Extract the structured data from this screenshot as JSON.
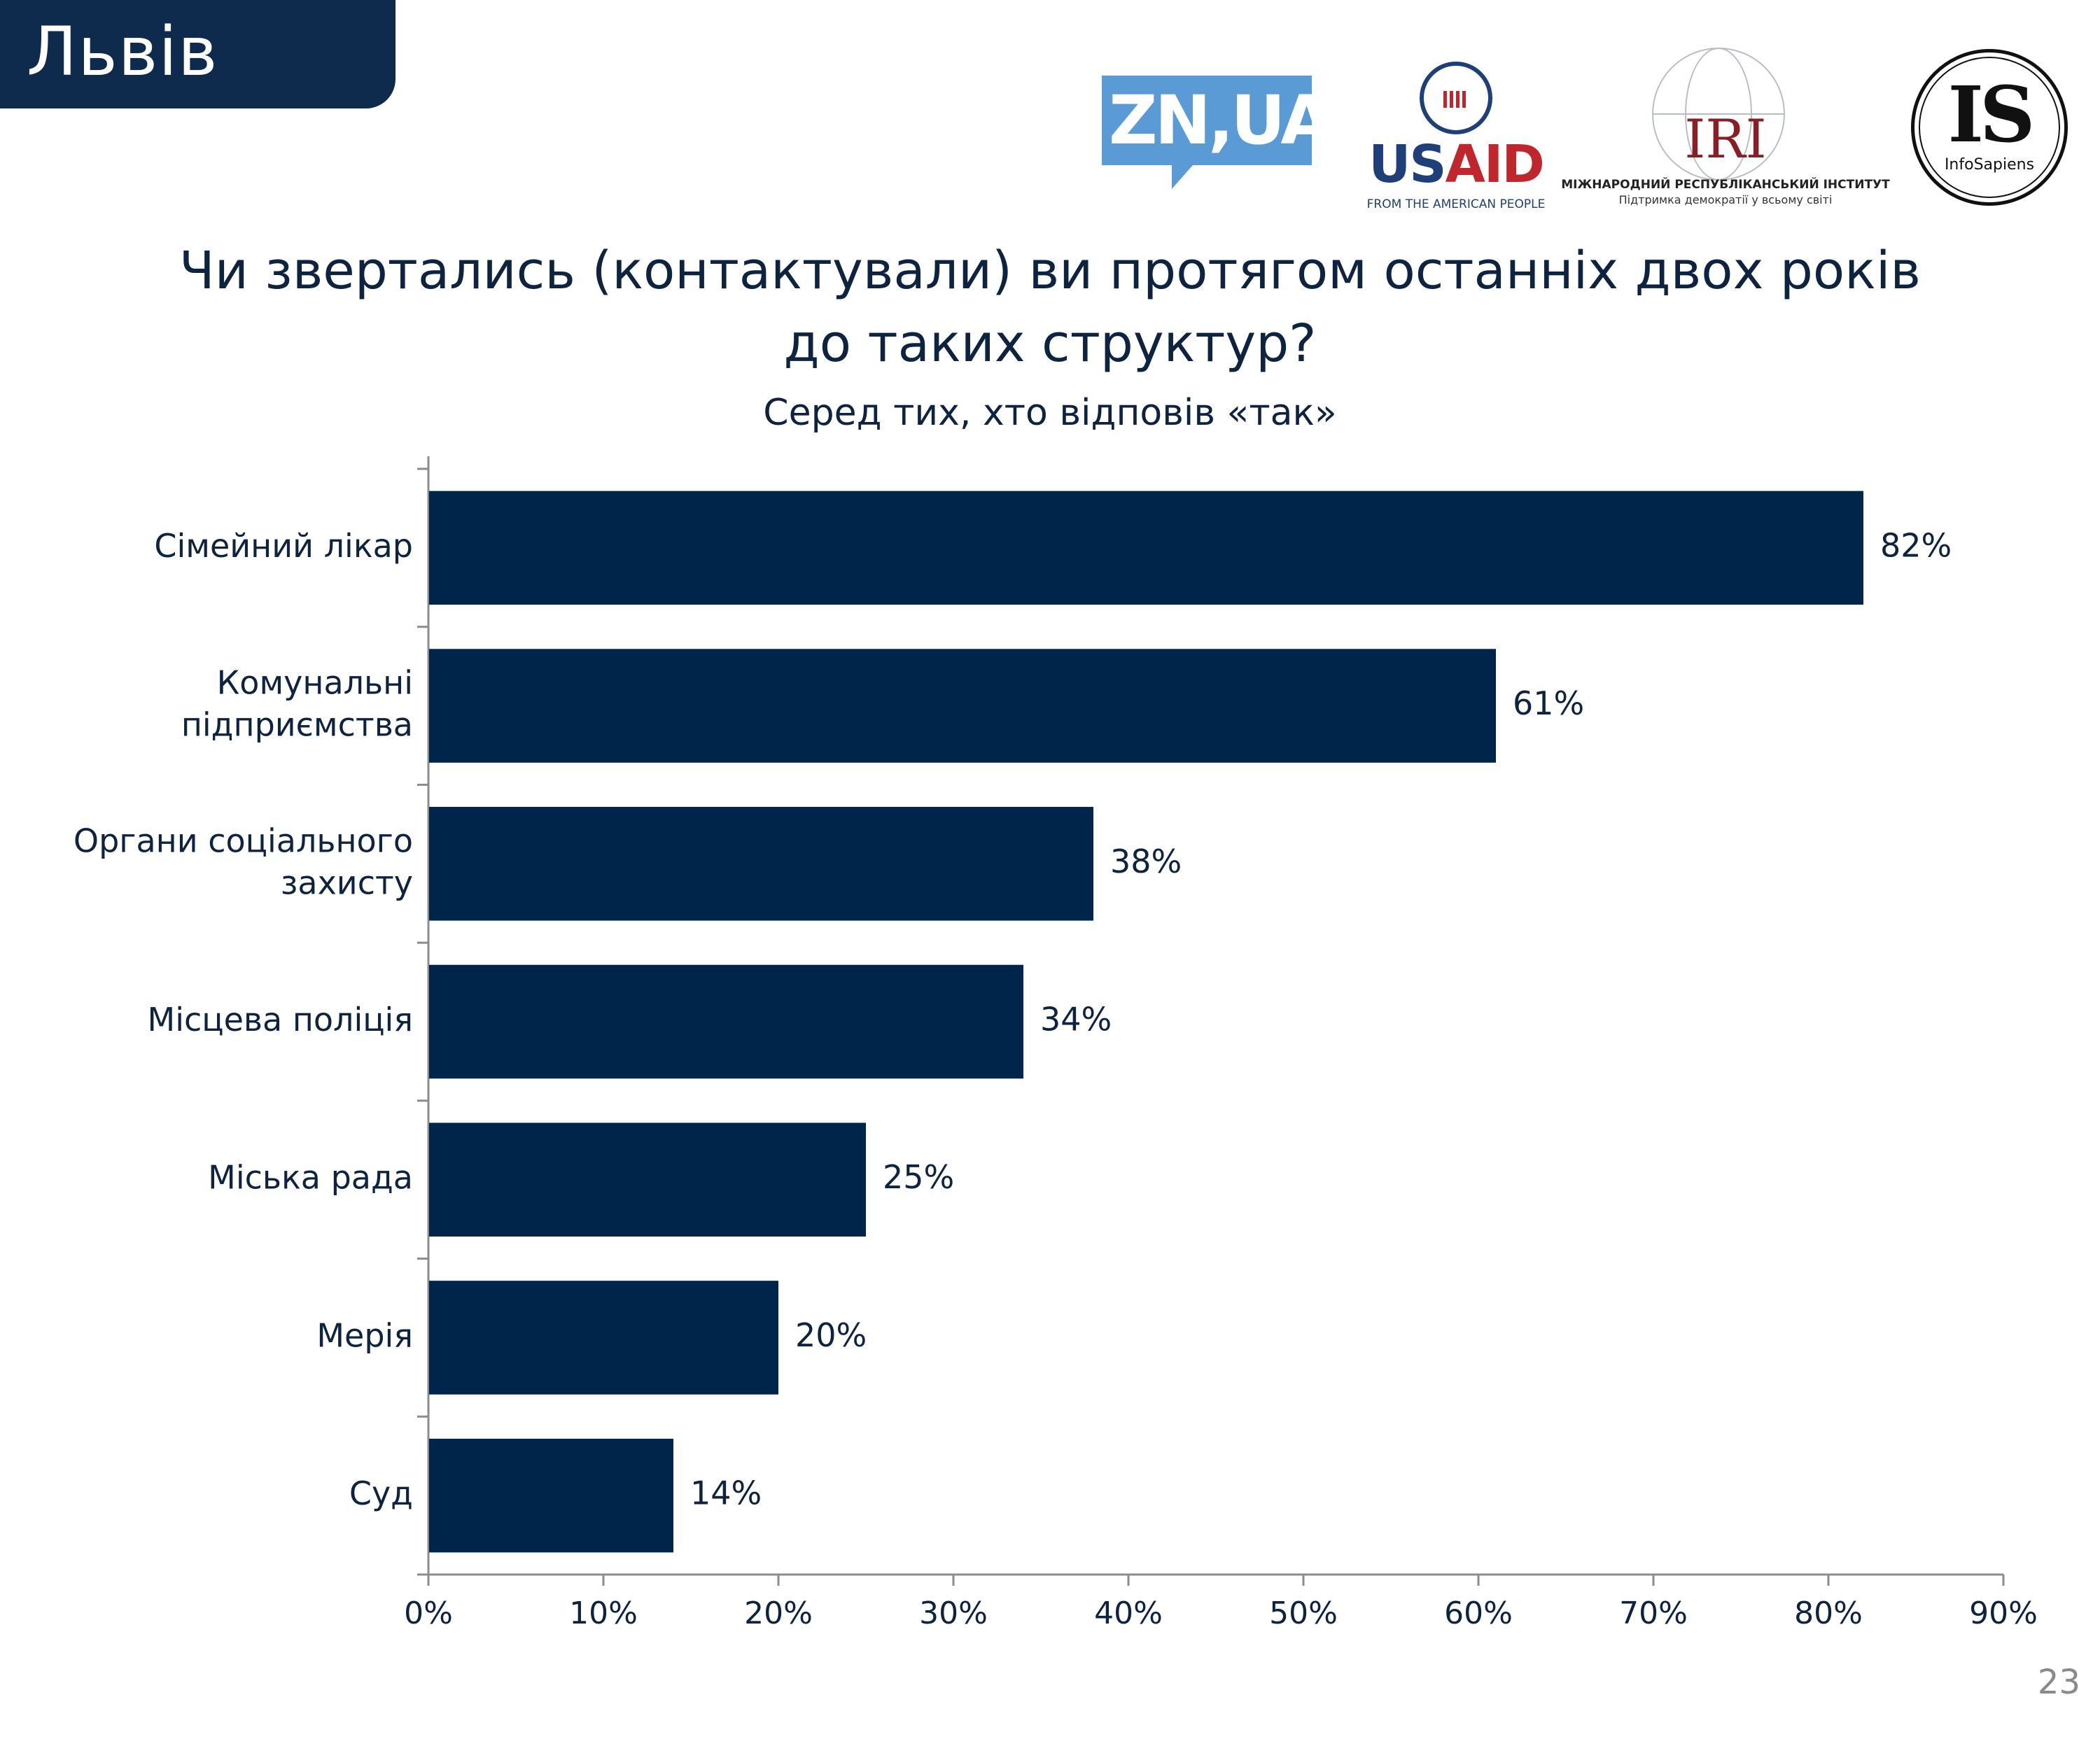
{
  "header": {
    "city": "Львів"
  },
  "logos": {
    "zn": "ZN,UA",
    "usaid": {
      "us": "US",
      "aid": "AID",
      "tagline": "FROM THE AMERICAN PEOPLE"
    },
    "iri": {
      "name": "IRI",
      "line1": "МІЖНАРОДНИЙ РЕСПУБЛІКАНСЬКИЙ ІНСТИТУТ",
      "line2": "Підтримка демократії у всьому світі"
    },
    "infosapiens": {
      "mark": "IS",
      "name": "InfoSapiens"
    }
  },
  "title_line1": "Чи звертались (контактували) ви протягом останніх двох років",
  "title_line2": "до таких структур?",
  "subtitle": "Серед тих, хто відповів «так»",
  "page_number": "23",
  "colors": {
    "bar": "#00254a",
    "axis": "#8c8c8c",
    "header": "#0e2a4d"
  },
  "chart_data": {
    "type": "bar",
    "orientation": "horizontal",
    "categories": [
      [
        "Сімейний лікар"
      ],
      [
        "Комунальні",
        "підприємства"
      ],
      [
        "Органи соціального",
        "захисту"
      ],
      [
        "Місцева поліція"
      ],
      [
        "Міська рада"
      ],
      [
        "Мерія"
      ],
      [
        "Суд"
      ]
    ],
    "values": [
      82,
      61,
      38,
      34,
      25,
      20,
      14
    ],
    "value_labels": [
      "82%",
      "61%",
      "38%",
      "34%",
      "25%",
      "20%",
      "14%"
    ],
    "xlim": [
      0,
      90
    ],
    "xticks": [
      0,
      10,
      20,
      30,
      40,
      50,
      60,
      70,
      80,
      90
    ],
    "xtick_labels": [
      "0%",
      "10%",
      "20%",
      "30%",
      "40%",
      "50%",
      "60%",
      "70%",
      "80%",
      "90%"
    ],
    "legend": "none",
    "grid": false
  }
}
